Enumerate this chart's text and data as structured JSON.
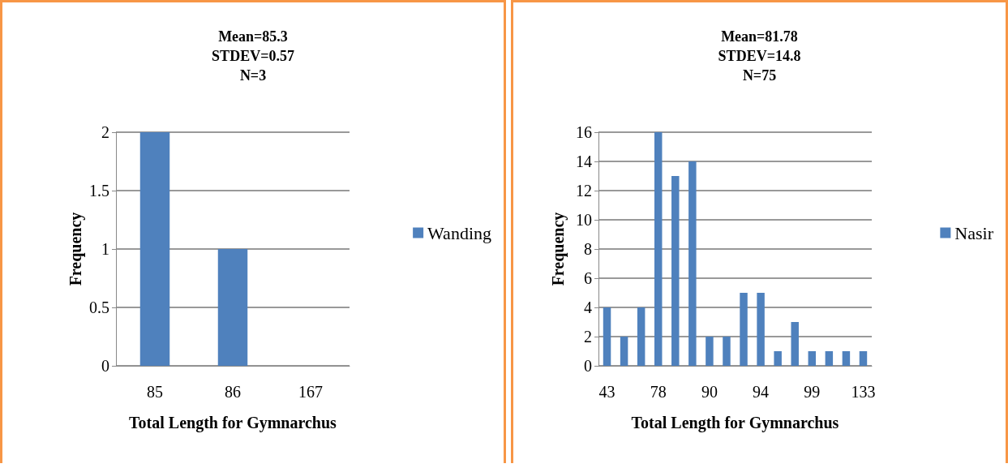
{
  "chart_data": [
    {
      "type": "bar",
      "title": "Mean=85.3\nSTDEV=0.57\nN=3",
      "xlabel": "Total Length for Gymnarchus",
      "ylabel": "Frequency",
      "categories": [
        "85",
        "86",
        "167"
      ],
      "series": [
        {
          "name": "Wanding",
          "color": "#4f81bd",
          "values": [
            2,
            1,
            0
          ]
        }
      ],
      "ylim": [
        0,
        2
      ],
      "yticks": [
        0,
        0.5,
        1,
        1.5,
        2
      ],
      "grid": "y",
      "legend": "right"
    },
    {
      "type": "bar",
      "title": "Mean=81.78\nSTDEV=14.8\nN=75",
      "xlabel": "Total Length for Gymnarchus",
      "ylabel": "Frequency",
      "categories": [
        "43",
        null,
        null,
        "78",
        null,
        null,
        "90",
        null,
        null,
        "94",
        null,
        null,
        "99",
        null,
        null,
        "133"
      ],
      "series": [
        {
          "name": "Nasir",
          "color": "#4f81bd",
          "values": [
            4,
            2,
            4,
            16,
            13,
            14,
            2,
            2,
            5,
            5,
            1,
            3,
            1,
            1,
            1,
            1
          ]
        }
      ],
      "ylim": [
        0,
        16
      ],
      "yticks": [
        0,
        2,
        4,
        6,
        8,
        10,
        12,
        14,
        16
      ],
      "grid": "y",
      "legend": "right"
    }
  ]
}
